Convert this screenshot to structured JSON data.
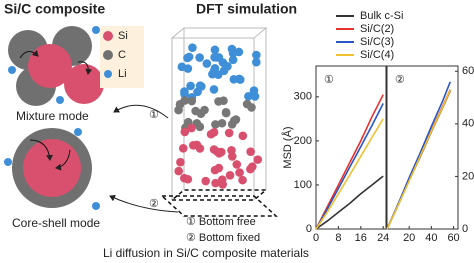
{
  "left": {
    "title": "Si/C composite",
    "legend": [
      "Si",
      "C",
      "Li"
    ],
    "modes": [
      "Mixture mode",
      "Core-shell mode"
    ]
  },
  "center": {
    "title": "DFT simulation",
    "arrow_labels": [
      "①",
      "②"
    ],
    "conditions": [
      "① Bottom free",
      "② Bottom fixed"
    ]
  },
  "caption": "Li diffusion in Si/C composite materials",
  "chart_data": [
    {
      "type": "line",
      "label": "①",
      "ylabel": "MSD (Å)",
      "x": [
        0,
        4,
        8,
        12,
        16,
        20,
        24
      ],
      "xlim": [
        0,
        25
      ],
      "xticks": [
        0,
        8,
        16,
        24
      ],
      "ylim": [
        0,
        370
      ],
      "yticks": [
        0,
        100,
        200,
        300
      ],
      "series": [
        {
          "name": "Bulk c-Si",
          "color": "#333333",
          "values": [
            0,
            18,
            38,
            58,
            80,
            100,
            120
          ]
        },
        {
          "name": "Si/C(2)",
          "color": "#e8332c",
          "values": [
            0,
            50,
            100,
            150,
            200,
            255,
            305
          ]
        },
        {
          "name": "Si/C(3)",
          "color": "#2a56c6",
          "values": [
            0,
            45,
            92,
            140,
            187,
            235,
            285
          ]
        },
        {
          "name": "Si/C(4)",
          "color": "#f0c030",
          "values": [
            0,
            38,
            80,
            122,
            165,
            208,
            250
          ]
        }
      ]
    },
    {
      "type": "line",
      "label": "②",
      "x": [
        0,
        10,
        20,
        30,
        40,
        50,
        57
      ],
      "xlim": [
        0,
        64
      ],
      "xticks": [
        20,
        40,
        60
      ],
      "y2lim": [
        0,
        620
      ],
      "y2ticks": [
        0,
        200,
        400,
        600
      ],
      "series": [
        {
          "color": "#333333",
          "axis": "y2",
          "values": [
            0,
            90,
            185,
            275,
            370,
            460,
            525
          ]
        },
        {
          "color": "#e8332c",
          "axis": "y2",
          "values": [
            0,
            92,
            188,
            280,
            375,
            465,
            530
          ]
        },
        {
          "color": "#2a56c6",
          "axis": "y2",
          "values": [
            0,
            95,
            195,
            290,
            390,
            485,
            560
          ]
        },
        {
          "color": "#f0c030",
          "axis": "y2",
          "values": [
            0,
            90,
            183,
            278,
            372,
            462,
            528
          ]
        }
      ]
    }
  ]
}
